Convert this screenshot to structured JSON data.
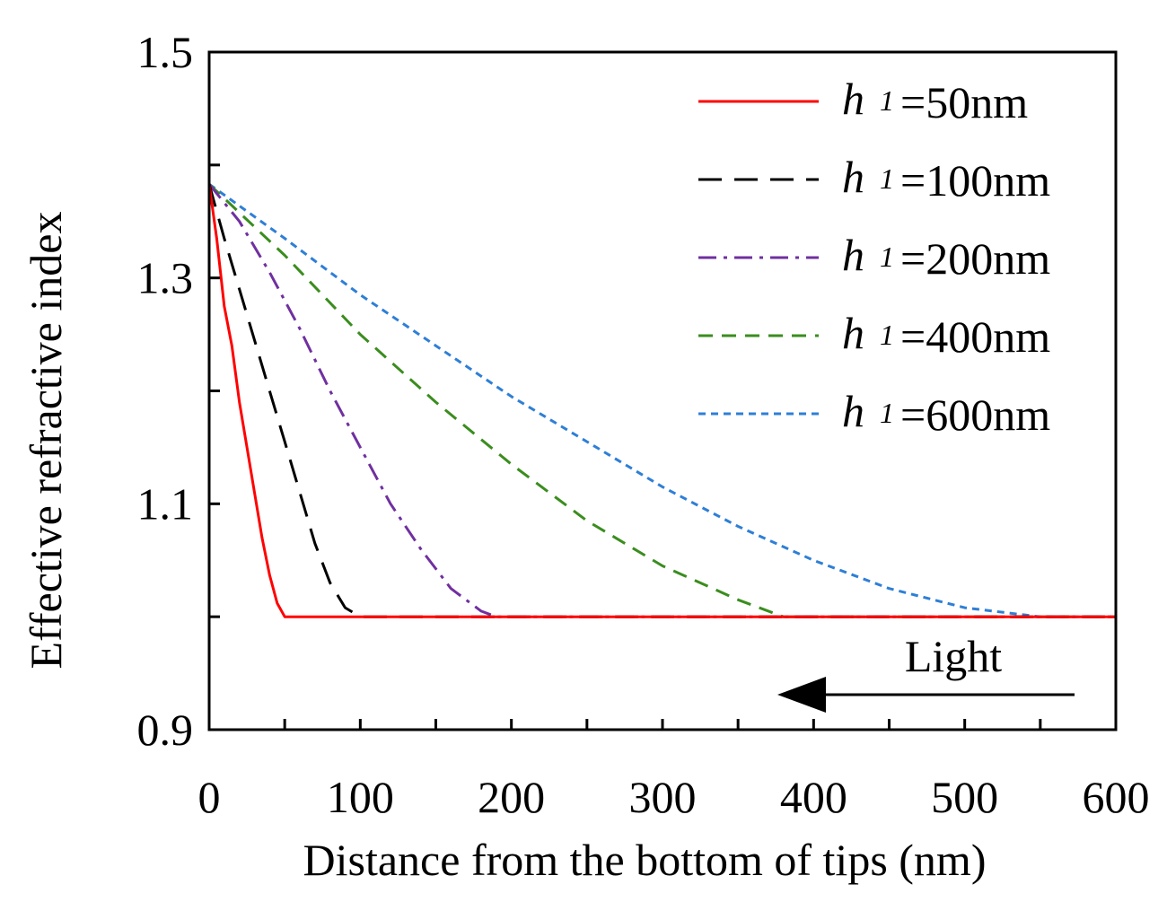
{
  "chart_data": {
    "type": "line",
    "title": "",
    "xlabel": "Distance from the bottom of tips (nm)",
    "ylabel": "Effective refractive index",
    "xlim": [
      0,
      600
    ],
    "ylim": [
      0.9,
      1.5
    ],
    "xticks": [
      0,
      100,
      200,
      300,
      400,
      500,
      600
    ],
    "xtick_labels": [
      "0",
      "100",
      "200",
      "300",
      "400",
      "500",
      "600"
    ],
    "yticks": [
      0.9,
      1.1,
      1.3,
      1.5
    ],
    "ytick_labels": [
      "0.9",
      "1.1",
      "1.3",
      "1.5"
    ],
    "grid": false,
    "legend_position": "top-right",
    "annotation": "Light",
    "series": [
      {
        "name": "=50nm",
        "label_var": "h",
        "label_sub": "1",
        "color": "#ff0000",
        "dash": "solid",
        "x": [
          0,
          5,
          10,
          15,
          20,
          25,
          30,
          35,
          40,
          45,
          50,
          60,
          100,
          200,
          300,
          400,
          500,
          600
        ],
        "y": [
          1.383,
          1.335,
          1.275,
          1.24,
          1.19,
          1.15,
          1.11,
          1.07,
          1.037,
          1.012,
          1.0,
          1.0,
          1.0,
          1.0,
          1.0,
          1.0,
          1.0,
          1.0
        ]
      },
      {
        "name": "=100nm",
        "label_var": "h",
        "label_sub": "1",
        "color": "#000000",
        "dash": "long-dash",
        "x": [
          0,
          10,
          20,
          30,
          40,
          50,
          60,
          70,
          80,
          90,
          100,
          200,
          300,
          400,
          500,
          600
        ],
        "y": [
          1.383,
          1.335,
          1.29,
          1.245,
          1.2,
          1.155,
          1.11,
          1.065,
          1.03,
          1.008,
          1.0,
          1.0,
          1.0,
          1.0,
          1.0,
          1.0
        ]
      },
      {
        "name": "=200nm",
        "label_var": "h",
        "label_sub": "1",
        "color": "#7030a0",
        "dash": "dash-dot",
        "x": [
          0,
          20,
          40,
          60,
          80,
          100,
          120,
          140,
          160,
          180,
          190,
          200,
          300,
          400,
          500,
          600
        ],
        "y": [
          1.383,
          1.35,
          1.305,
          1.255,
          1.2,
          1.15,
          1.1,
          1.06,
          1.025,
          1.005,
          1.0,
          1.0,
          1.0,
          1.0,
          1.0,
          1.0
        ]
      },
      {
        "name": "=400nm",
        "label_var": "h",
        "label_sub": "1",
        "color": "#3a8d1e",
        "dash": "dash",
        "x": [
          0,
          50,
          100,
          150,
          200,
          250,
          300,
          350,
          380,
          400,
          500,
          600
        ],
        "y": [
          1.383,
          1.32,
          1.25,
          1.19,
          1.135,
          1.085,
          1.045,
          1.015,
          1.0,
          1.0,
          1.0,
          1.0
        ]
      },
      {
        "name": "=600nm",
        "label_var": "h",
        "label_sub": "1",
        "color": "#2e7fd6",
        "dash": "short-dash",
        "x": [
          0,
          50,
          100,
          150,
          200,
          250,
          300,
          350,
          400,
          450,
          500,
          550,
          575,
          600
        ],
        "y": [
          1.383,
          1.335,
          1.285,
          1.24,
          1.195,
          1.155,
          1.115,
          1.08,
          1.05,
          1.025,
          1.008,
          1.0,
          1.0,
          1.0
        ]
      }
    ]
  }
}
